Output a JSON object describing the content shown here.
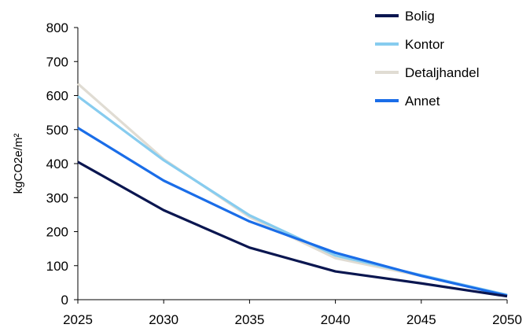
{
  "chart_data": {
    "type": "line",
    "title": "",
    "xlabel": "",
    "ylabel": "kgCO2e/m²",
    "x": [
      2025,
      2030,
      2035,
      2040,
      2045,
      2050
    ],
    "xlim": [
      2025,
      2050
    ],
    "ylim": [
      0,
      800
    ],
    "yticks": [
      0,
      100,
      200,
      300,
      400,
      500,
      600,
      700,
      800
    ],
    "xticks": [
      2025,
      2030,
      2035,
      2040,
      2045,
      2050
    ],
    "grid": false,
    "legend_position": "top-right",
    "series": [
      {
        "name": "Bolig",
        "color": "#0a1650",
        "values": [
          405,
          263,
          153,
          83,
          48,
          10
        ]
      },
      {
        "name": "Kontor",
        "color": "#87ccef",
        "values": [
          598,
          410,
          248,
          130,
          72,
          14
        ]
      },
      {
        "name": "Detaljhandel",
        "color": "#e0dcd3",
        "values": [
          635,
          413,
          243,
          122,
          70,
          14
        ]
      },
      {
        "name": "Annet",
        "color": "#1a6de8",
        "values": [
          505,
          350,
          230,
          138,
          70,
          12
        ]
      }
    ]
  }
}
